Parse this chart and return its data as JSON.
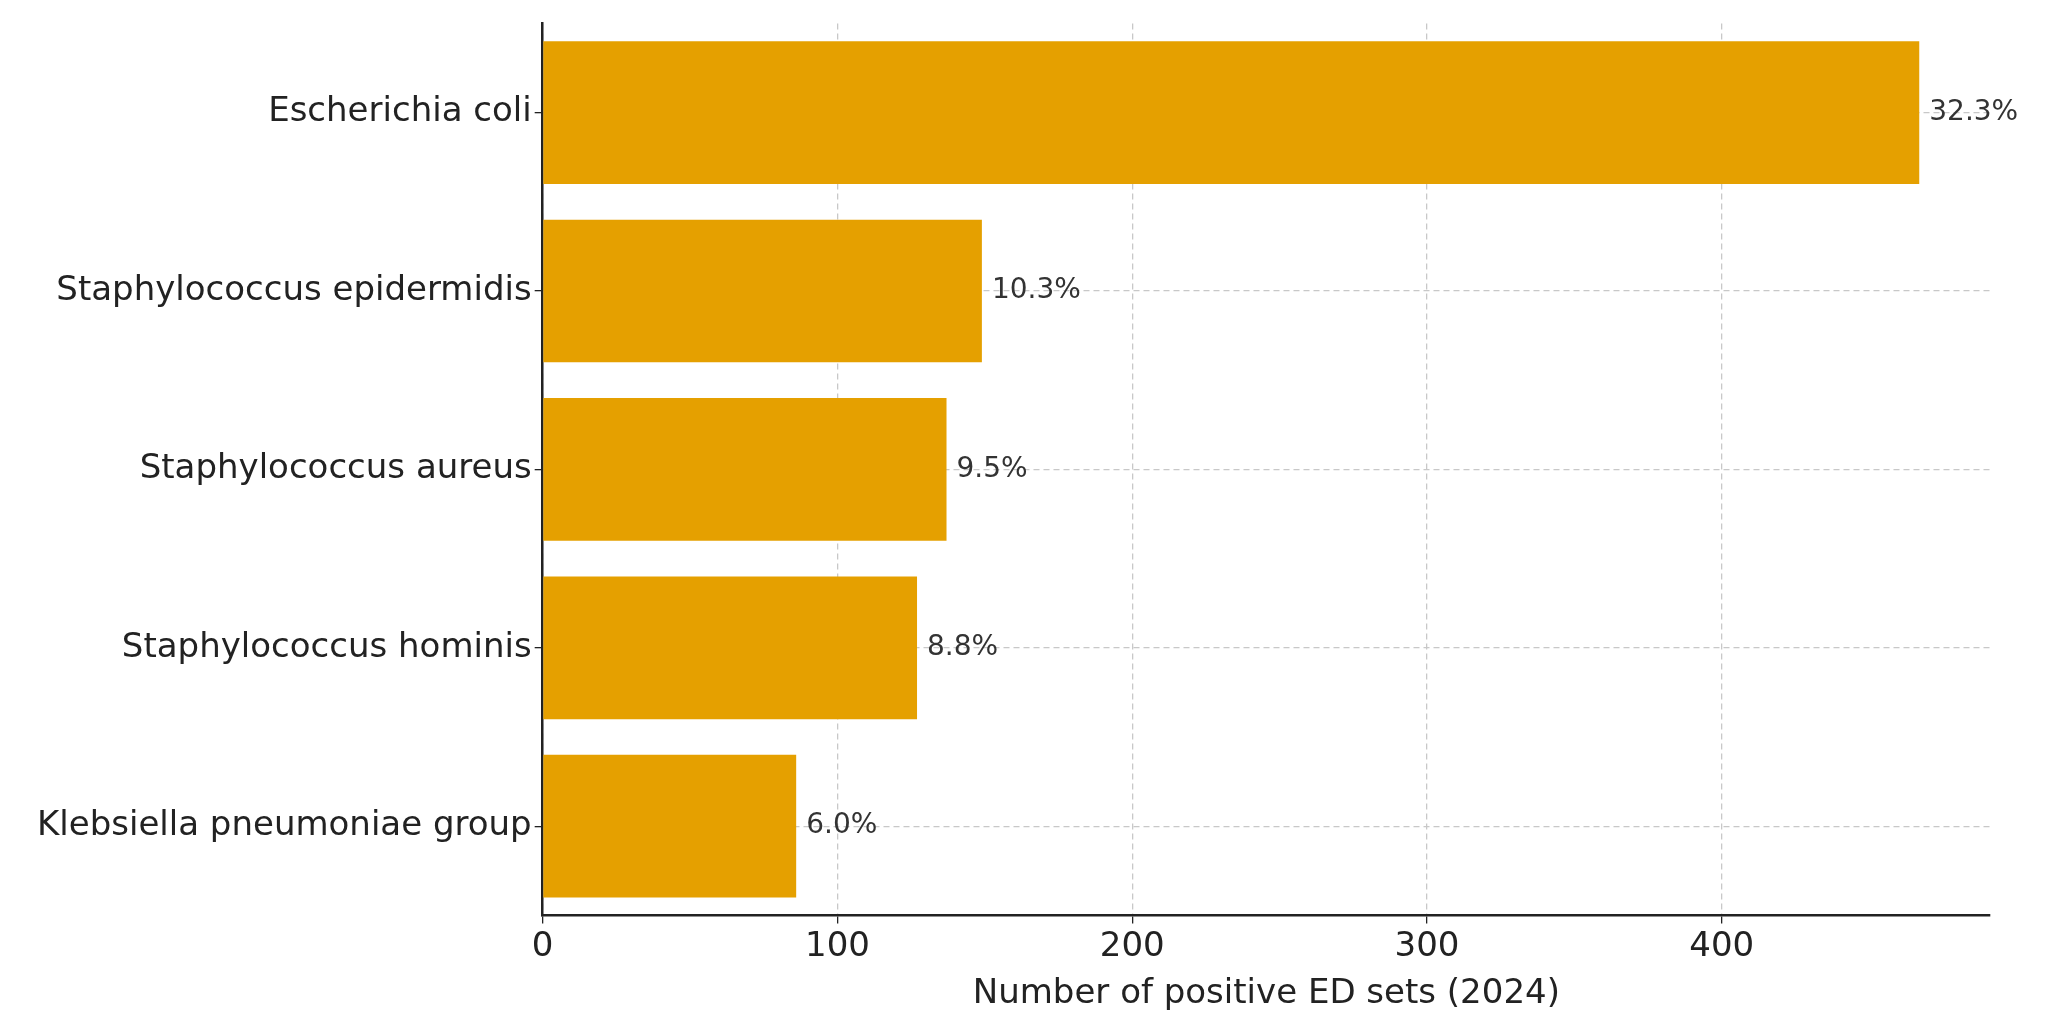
{
  "chart_data": {
    "type": "bar",
    "orientation": "horizontal",
    "xlabel": "Number of positive ED sets (2024)",
    "categories": [
      "Escherichia coli",
      "Staphylococcus epidermidis",
      "Staphylococcus aureus",
      "Staphylococcus hominis",
      "Klebsiella pneumoniae group"
    ],
    "values": [
      467,
      149,
      137,
      127,
      86
    ],
    "annotations": [
      {
        "text": "32.3%",
        "x": 467,
        "y": "Escherichia coli"
      },
      {
        "text": "10.3%",
        "x": 149,
        "y": "Staphylococcus epidermidis"
      },
      {
        "text": "9.5%",
        "x": 137,
        "y": "Staphylococcus aureus"
      },
      {
        "text": "8.8%",
        "x": 127,
        "y": "Staphylococcus hominis"
      },
      {
        "text": "6.0%",
        "x": 86,
        "y": "Klebsiella pneumoniae group"
      }
    ],
    "color": "#e5a000",
    "xlim": [
      0,
      491
    ],
    "xticks": [
      0,
      100,
      200,
      300,
      400
    ],
    "grid": true,
    "legend": false
  }
}
